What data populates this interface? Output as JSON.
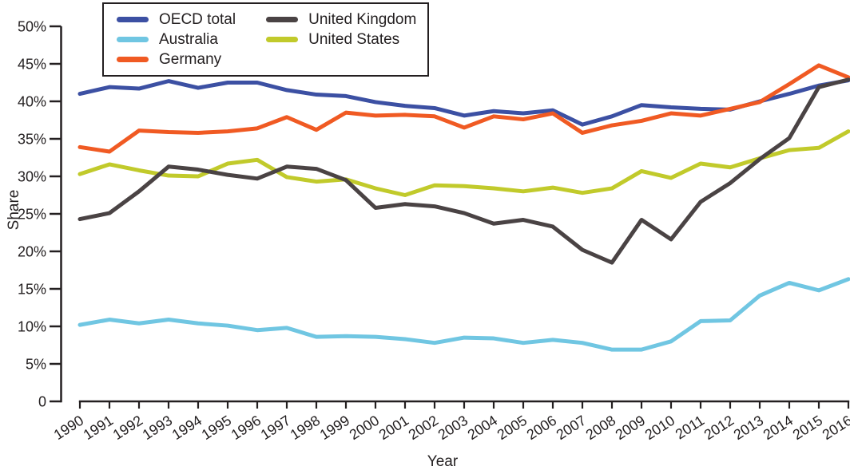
{
  "chart_data": {
    "type": "line",
    "title": "",
    "xlabel": "Year",
    "ylabel": "Share",
    "x": [
      1990,
      1991,
      1992,
      1993,
      1994,
      1995,
      1996,
      1997,
      1998,
      1999,
      2000,
      2001,
      2002,
      2003,
      2004,
      2005,
      2006,
      2007,
      2008,
      2009,
      2010,
      2011,
      2012,
      2013,
      2014,
      2015,
      2016
    ],
    "ylim": [
      0,
      50
    ],
    "yticks": [
      0,
      5,
      10,
      15,
      20,
      25,
      30,
      35,
      40,
      45,
      50
    ],
    "ytick_labels": [
      "0",
      "5%",
      "10%",
      "15%",
      "20%",
      "25%",
      "30%",
      "35%",
      "40%",
      "45%",
      "50%"
    ],
    "grid": false,
    "legend_position": "top-left",
    "legend_columns": 2,
    "series": [
      {
        "name": "OECD total",
        "color": "#3C50A3",
        "values": [
          41.0,
          41.9,
          41.7,
          42.7,
          41.8,
          42.5,
          42.5,
          41.5,
          40.9,
          40.7,
          39.9,
          39.4,
          39.1,
          38.1,
          38.7,
          38.4,
          38.8,
          36.9,
          38.0,
          39.5,
          39.2,
          39.0,
          38.9,
          40.0,
          41.0,
          42.1,
          42.8
        ]
      },
      {
        "name": "Australia",
        "color": "#70C6E2",
        "values": [
          10.2,
          10.9,
          10.4,
          10.9,
          10.4,
          10.1,
          9.5,
          9.8,
          8.6,
          8.7,
          8.6,
          8.3,
          7.8,
          8.5,
          8.4,
          7.8,
          8.2,
          7.8,
          6.9,
          6.9,
          8.0,
          10.7,
          10.8,
          14.1,
          15.8,
          14.8,
          16.3
        ]
      },
      {
        "name": "Germany",
        "color": "#F05A23",
        "values": [
          33.9,
          33.3,
          36.1,
          35.9,
          35.8,
          36.0,
          36.4,
          37.9,
          36.2,
          38.5,
          38.1,
          38.2,
          38.0,
          36.5,
          38.0,
          37.6,
          38.4,
          35.8,
          36.8,
          37.4,
          38.4,
          38.1,
          39.0,
          39.9,
          42.3,
          44.8,
          43.2
        ]
      },
      {
        "name": "United Kingdom",
        "color": "#4A4344",
        "values": [
          24.3,
          25.1,
          28.0,
          31.3,
          30.9,
          30.2,
          29.7,
          31.3,
          31.0,
          29.5,
          25.8,
          26.3,
          26.0,
          25.1,
          23.7,
          24.2,
          23.3,
          20.2,
          18.5,
          24.2,
          21.6,
          26.6,
          29.1,
          32.3,
          35.1,
          41.9,
          42.9
        ]
      },
      {
        "name": "United States",
        "color": "#C1CA2B",
        "values": [
          30.3,
          31.6,
          30.8,
          30.1,
          30.0,
          31.7,
          32.2,
          29.9,
          29.3,
          29.6,
          28.4,
          27.5,
          28.8,
          28.7,
          28.4,
          28.0,
          28.5,
          27.8,
          28.4,
          30.7,
          29.8,
          31.7,
          31.2,
          32.4,
          33.5,
          33.8,
          36.0
        ]
      }
    ]
  },
  "colors": {
    "axis": "#231F20",
    "background": "#FFFFFF"
  }
}
